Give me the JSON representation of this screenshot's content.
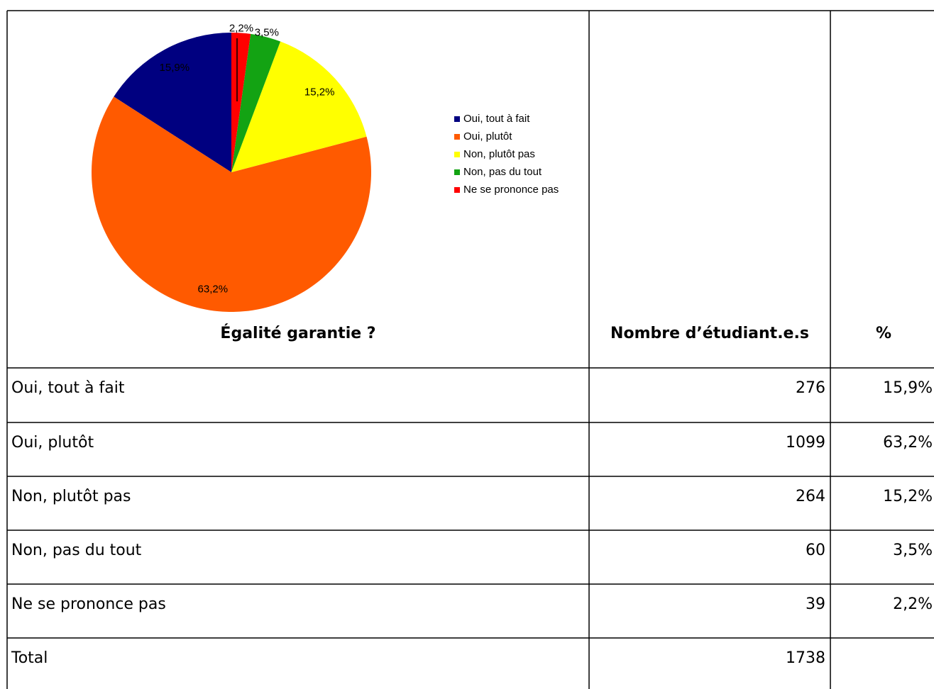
{
  "chart_data": {
    "type": "pie",
    "categories": [
      "Oui, tout à fait",
      "Oui, plutôt",
      "Non, plutôt pas",
      "Non, pas du tout",
      "Ne se prononce pas"
    ],
    "values": [
      15.9,
      63.2,
      15.2,
      3.5,
      2.2
    ],
    "value_labels": [
      "15,9%",
      "63,2%",
      "15,2%",
      "3,5%",
      "2,2%"
    ],
    "colors": [
      "#000080",
      "#ff5a00",
      "#ffff00",
      "#13a313",
      "#ff0000"
    ],
    "legend": "right"
  },
  "table": {
    "header": [
      "Égalité garantie ?",
      "Nombre d’étudiant.e.s",
      "%"
    ],
    "rows": [
      [
        "Oui, tout à fait",
        "276",
        "15,9%"
      ],
      [
        "Oui, plutôt",
        "1099",
        "63,2%"
      ],
      [
        "Non, plutôt pas",
        "264",
        "15,2%"
      ],
      [
        "Non, pas du tout",
        "60",
        "3,5%"
      ],
      [
        "Ne se prononce pas",
        "39",
        "2,2%"
      ]
    ],
    "total": [
      "Total",
      "1738"
    ]
  }
}
